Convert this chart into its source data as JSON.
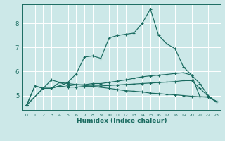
{
  "xlabel": "Humidex (Indice chaleur)",
  "ylabel": "",
  "bg_color": "#cce8e8",
  "grid_color": "#ffffff",
  "line_color": "#1a6b60",
  "xlim": [
    -0.5,
    23.5
  ],
  "ylim": [
    4.4,
    8.8
  ],
  "xticks": [
    0,
    1,
    2,
    3,
    4,
    5,
    6,
    7,
    8,
    9,
    10,
    11,
    12,
    13,
    14,
    15,
    16,
    17,
    18,
    19,
    20,
    21,
    22,
    23
  ],
  "yticks": [
    5,
    6,
    7,
    8
  ],
  "series": [
    {
      "x": [
        0,
        1,
        2,
        3,
        4,
        5,
        6,
        7,
        8,
        9,
        10,
        11,
        12,
        13,
        14,
        15,
        16,
        17,
        18,
        19,
        20,
        21,
        22,
        23
      ],
      "y": [
        4.6,
        5.4,
        5.3,
        5.3,
        5.4,
        5.55,
        5.9,
        6.6,
        6.65,
        6.55,
        7.4,
        7.5,
        7.55,
        7.6,
        8.0,
        8.6,
        7.5,
        7.15,
        6.95,
        6.2,
        5.85,
        4.95,
        4.95,
        4.75
      ]
    },
    {
      "x": [
        0,
        1,
        2,
        3,
        4,
        5,
        6,
        7,
        8,
        9,
        10,
        11,
        12,
        13,
        14,
        15,
        16,
        17,
        18,
        19,
        20,
        21,
        22,
        23
      ],
      "y": [
        4.6,
        5.4,
        5.3,
        5.3,
        5.55,
        5.4,
        5.45,
        5.45,
        5.5,
        5.5,
        5.55,
        5.6,
        5.65,
        5.72,
        5.78,
        5.82,
        5.85,
        5.88,
        5.92,
        5.95,
        5.85,
        5.5,
        5.0,
        4.75
      ]
    },
    {
      "x": [
        0,
        2,
        3,
        4,
        5,
        6,
        7,
        8,
        9,
        10,
        11,
        12,
        13,
        14,
        15,
        16,
        17,
        18,
        19,
        20,
        21,
        22,
        23
      ],
      "y": [
        4.6,
        5.3,
        5.3,
        5.4,
        5.35,
        5.35,
        5.38,
        5.4,
        5.4,
        5.42,
        5.44,
        5.46,
        5.48,
        5.5,
        5.52,
        5.54,
        5.56,
        5.58,
        5.62,
        5.62,
        5.3,
        4.97,
        4.75
      ]
    },
    {
      "x": [
        0,
        2,
        3,
        4,
        5,
        10,
        11,
        12,
        13,
        14,
        15,
        16,
        17,
        18,
        19,
        20,
        21,
        22,
        23
      ],
      "y": [
        4.6,
        5.3,
        5.65,
        5.55,
        5.5,
        5.3,
        5.25,
        5.2,
        5.18,
        5.15,
        5.1,
        5.08,
        5.05,
        5.03,
        5.0,
        4.97,
        4.95,
        4.93,
        4.75
      ]
    }
  ]
}
